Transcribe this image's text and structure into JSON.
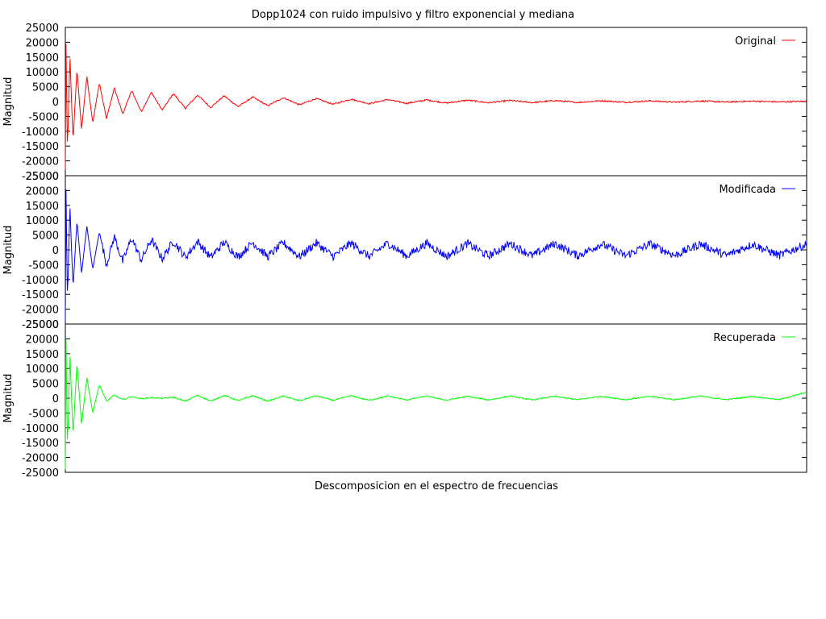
{
  "chart_data": {
    "type": "line",
    "title": "Dopp1024 con ruido impulsivo y filtro exponencial y mediana",
    "xlabel": "Descomposicion en el espectro de frecuencias",
    "x_range": [
      0,
      1023
    ],
    "x_tick_labels": false,
    "grid": false,
    "legend_position": "top-right",
    "panels": [
      {
        "ylabel": "Magnitud",
        "ylim": [
          -25000,
          25000
        ],
        "yticks": [
          25000,
          20000,
          15000,
          10000,
          5000,
          0,
          -5000,
          -10000,
          -15000,
          -20000,
          -25000
        ],
        "series": [
          {
            "name": "Original",
            "color": "#ff0000",
            "values": [
              -23000,
              21000,
              -17000,
              15500,
              -13500,
              11000,
              -9500,
              8500,
              -7200,
              6300,
              -5800,
              4600,
              -4200,
              3700,
              -3400,
              3100,
              -2900,
              2700,
              -2300,
              2200,
              -2000,
              1900,
              -1700,
              1500,
              -1400,
              1300,
              -1100,
              1000,
              -900,
              800,
              -700,
              650,
              -600,
              550,
              -500,
              450,
              -400,
              380,
              -350,
              320,
              -300,
              280,
              -250,
              230,
              -200,
              180,
              -160,
              140,
              -120,
              100
            ]
          }
        ]
      },
      {
        "ylabel": "Magnitud",
        "ylim": [
          -25000,
          25000
        ],
        "yticks": [
          25000,
          20000,
          15000,
          10000,
          5000,
          0,
          -5000,
          -10000,
          -15000,
          -20000,
          -25000
        ],
        "series": [
          {
            "name": "Modificada",
            "color": "#0000ff",
            "values": [
              -24000,
              22000,
              -17500,
              15000,
              -13000,
              10000,
              -8000,
              8000,
              -6500,
              6000,
              -5000,
              4500,
              -4000,
              4000,
              -3500,
              3500,
              -3000,
              3000,
              -2500,
              2800,
              -2600,
              2600,
              -2400,
              2500,
              -2300,
              2400,
              -2300,
              2300,
              -2200,
              2300,
              -2200,
              2200,
              -2100,
              2200,
              -2200,
              2100,
              -2100,
              2100,
              -2000,
              2100,
              -2000,
              2000,
              -2000,
              2000,
              -1900,
              2000,
              -1900,
              1900,
              -1900,
              1900
            ]
          }
        ]
      },
      {
        "ylabel": "Magnitud",
        "ylim": [
          -25000,
          25000
        ],
        "yticks": [
          25000,
          20000,
          15000,
          10000,
          5000,
          0,
          -5000,
          -10000,
          -15000,
          -20000,
          -25000
        ],
        "series": [
          {
            "name": "Recuperada",
            "color": "#00ff00",
            "values": [
              -24000,
              22000,
              -17500,
              15000,
              -13000,
              12000,
              -9000,
              7000,
              -5000,
              4500,
              -1000,
              1000,
              -500,
              500,
              -200,
              200,
              -100,
              300,
              -1000,
              1000,
              -1000,
              900,
              -800,
              800,
              -1000,
              700,
              -900,
              800,
              -700,
              800,
              -700,
              700,
              -600,
              700,
              -700,
              600,
              -600,
              700,
              -600,
              600,
              -500,
              600,
              -500,
              600,
              -500,
              700,
              -500,
              600,
              -500,
              2000
            ]
          }
        ]
      }
    ]
  }
}
